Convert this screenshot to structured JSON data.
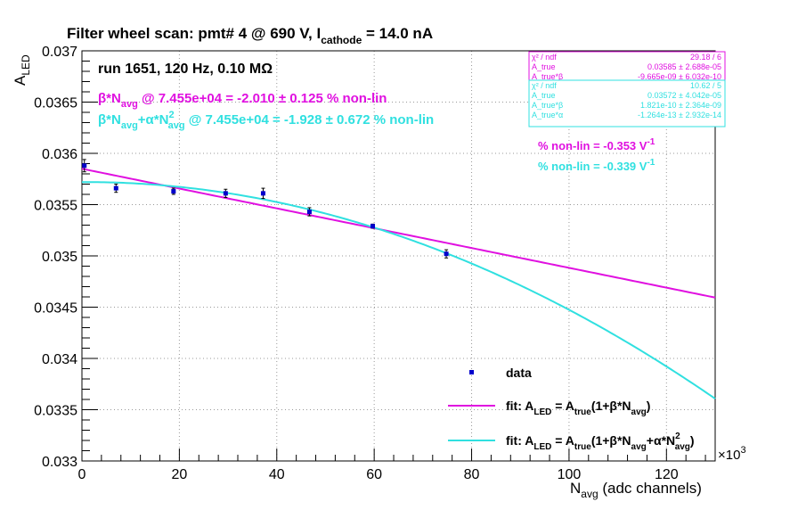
{
  "chart_data": {
    "type": "scatter",
    "title_main": "Filter wheel scan: pmt#   4 @   690 V, I",
    "title_sub": "cathode",
    "title_end": " = 14.0 nA",
    "run_label": "run 1651, 120 Hz, 0.10 MΩ",
    "ylabel_main": "A",
    "ylabel_sub": "LED",
    "xlabel_main": "N",
    "xlabel_sub": "avg",
    "xlabel_end": " (adc channels)",
    "x_multiplier": "×10",
    "x_multiplier_exp": "3",
    "xlim": [
      0,
      130
    ],
    "ylim": [
      0.033,
      0.037
    ],
    "x_ticks": [
      0,
      20,
      40,
      60,
      80,
      100,
      120
    ],
    "y_ticks": [
      0.033,
      0.0335,
      0.034,
      0.0345,
      0.035,
      0.0355,
      0.036,
      0.0365,
      0.037
    ],
    "y_tick_labels": [
      "0.033",
      "0.0335",
      "0.034",
      "0.0345",
      "0.035",
      "0.0355",
      "0.036",
      "0.0365",
      "0.037"
    ],
    "grid": true,
    "data_points": [
      {
        "x": 0.5,
        "y": 0.03588,
        "err": 6e-05
      },
      {
        "x": 7.0,
        "y": 0.03566,
        "err": 4e-05
      },
      {
        "x": 18.8,
        "y": 0.03563,
        "err": 3e-05
      },
      {
        "x": 29.5,
        "y": 0.03561,
        "err": 4e-05
      },
      {
        "x": 37.2,
        "y": 0.03561,
        "err": 5e-05
      },
      {
        "x": 46.7,
        "y": 0.03543,
        "err": 4e-05
      },
      {
        "x": 59.7,
        "y": 0.03529,
        "err": 2e-05
      },
      {
        "x": 74.8,
        "y": 0.03502,
        "err": 4e-05
      }
    ],
    "fit_linear": {
      "a_true": 0.03585,
      "beta": -9.665e-09,
      "color": "#e010e0"
    },
    "fit_quadratic": {
      "a_true": 0.03572,
      "beta": 1.821e-10,
      "alpha": -1.264e-13,
      "color": "#30e0e0"
    },
    "annotation_magenta": {
      "p1": "β*N",
      "p1_sub": "avg",
      "p2": " @ 7.455e+04 = -2.010 ± 0.125 % non-lin"
    },
    "annotation_cyan": {
      "p1": "β*N",
      "p1_sub": "avg",
      "p2": "+α*N",
      "p2_sup": "2",
      "p2_sub": "avg",
      "p3": " @ 7.455e+04 = -1.928 ± 0.672 % non-lin"
    },
    "nonlin_magenta": {
      "text": "% non-lin = -0.353 V",
      "sup": "-1"
    },
    "nonlin_cyan": {
      "text": "% non-lin = -0.339 V",
      "sup": "-1"
    },
    "stats_box_1": {
      "rows": [
        {
          "label": "χ² / ndf",
          "value": "29.18 / 6"
        },
        {
          "label": "A_true",
          "value": "0.03585 ± 2.688e-05"
        },
        {
          "label": "A_true*β",
          "value": "-9.665e-09 ± 6.032e-10"
        }
      ]
    },
    "stats_box_2": {
      "rows": [
        {
          "label": "χ² / ndf",
          "value": "10.62 / 5"
        },
        {
          "label": "A_true",
          "value": "0.03572 ± 4.042e-05"
        },
        {
          "label": "A_true*β",
          "value": "1.821e-10 ± 2.364e-09"
        },
        {
          "label": "A_true*α",
          "value": "-1.264e-13 ± 2.932e-14"
        }
      ]
    },
    "legend": {
      "placement": "bottom-right",
      "data_label": "data",
      "fit1": {
        "p1": "fit: A",
        "s1": "LED",
        "p2": " = A",
        "s2": "true",
        "p3": "(1+β*N",
        "s3": "avg",
        "p4": ")"
      },
      "fit2": {
        "p1": "fit: A",
        "s1": "LED",
        "p2": " = A",
        "s2": "true",
        "p3": "(1+β*N",
        "s3": "avg",
        "p4": "+α*N",
        "sup4": "2",
        "s4": "avg",
        "p5": ")"
      }
    },
    "colors": {
      "data": "#0000cc",
      "magenta": "#e010e0",
      "cyan": "#30e0e0",
      "axis": "#000000",
      "grid": "#999999"
    }
  }
}
